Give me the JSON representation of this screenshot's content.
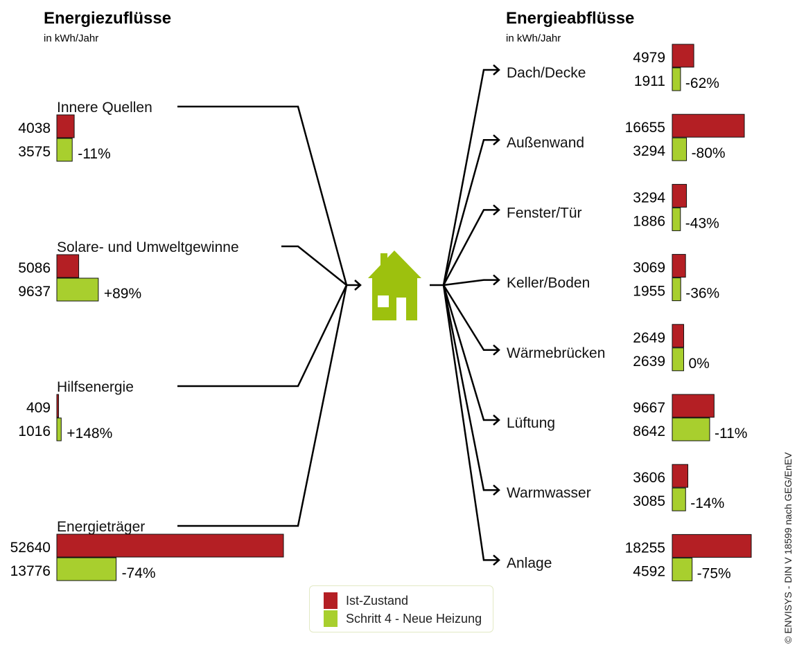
{
  "colors": {
    "ist": "#b41f24",
    "neu": "#a8cf2e",
    "house": "#9dc10e",
    "line": "#000000"
  },
  "legend": {
    "ist_label": "Ist-Zustand",
    "neu_label": "Schritt 4 - Neue Heizung"
  },
  "credit": "© ENVISYS - DIN V 18599 nach GEG/EnEV",
  "chart_data": {
    "type": "bar",
    "unit": "kWh/Jahr",
    "inflows": {
      "title": "Energiezuflüsse",
      "subtitle": "in kWh/Jahr",
      "series_names": [
        "Ist-Zustand",
        "Schritt 4 - Neue Heizung"
      ],
      "categories": [
        {
          "label": "Innere Quellen",
          "ist": 4038,
          "neu": 3575,
          "change": "-11%"
        },
        {
          "label": "Solare- und Umweltgewinne",
          "ist": 5086,
          "neu": 9637,
          "change": "+89%"
        },
        {
          "label": "Hilfsenergie",
          "ist": 409,
          "neu": 1016,
          "change": "+148%"
        },
        {
          "label": "Energieträger",
          "ist": 52640,
          "neu": 13776,
          "change": "-74%"
        }
      ]
    },
    "outflows": {
      "title": "Energieabflüsse",
      "subtitle": "in kWh/Jahr",
      "series_names": [
        "Ist-Zustand",
        "Schritt 4 - Neue Heizung"
      ],
      "categories": [
        {
          "label": "Dach/Decke",
          "ist": 4979,
          "neu": 1911,
          "change": "-62%"
        },
        {
          "label": "Außenwand",
          "ist": 16655,
          "neu": 3294,
          "change": "-80%"
        },
        {
          "label": "Fenster/Tür",
          "ist": 3294,
          "neu": 1886,
          "change": "-43%"
        },
        {
          "label": "Keller/Boden",
          "ist": 3069,
          "neu": 1955,
          "change": "-36%"
        },
        {
          "label": "Wärmebrücken",
          "ist": 2649,
          "neu": 2639,
          "change": "0%"
        },
        {
          "label": "Lüftung",
          "ist": 9667,
          "neu": 8642,
          "change": "-11%"
        },
        {
          "label": "Warmwasser",
          "ist": 3606,
          "neu": 3085,
          "change": "-14%"
        },
        {
          "label": "Anlage",
          "ist": 18255,
          "neu": 4592,
          "change": "-75%"
        }
      ]
    }
  }
}
